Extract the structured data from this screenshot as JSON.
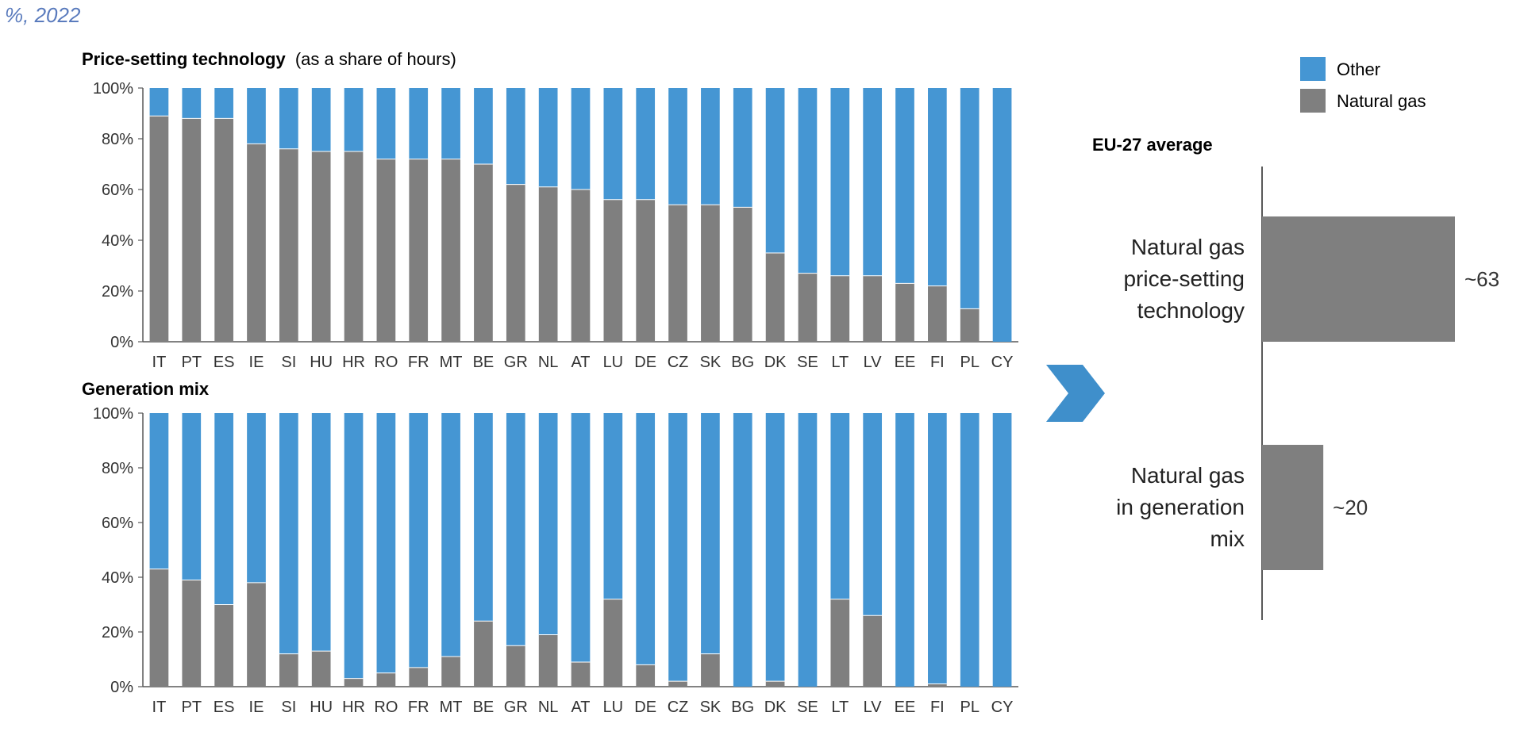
{
  "subtitle": "%, 2022",
  "colors": {
    "other": "#4596d3",
    "gas": "#7f7f7f",
    "axis": "#595959",
    "subtitle": "#5a7bbd",
    "arrow": "#3f8fcb"
  },
  "legend": {
    "other": "Other",
    "gas": "Natural gas"
  },
  "chart_data": [
    {
      "type": "bar",
      "stacked": true,
      "title": "Price-setting technology",
      "title_suffix": "(as a share of hours)",
      "categories": [
        "IT",
        "PT",
        "ES",
        "IE",
        "SI",
        "HU",
        "HR",
        "RO",
        "FR",
        "MT",
        "BE",
        "GR",
        "NL",
        "AT",
        "LU",
        "DE",
        "CZ",
        "SK",
        "BG",
        "DK",
        "SE",
        "LT",
        "LV",
        "EE",
        "FI",
        "PL",
        "CY"
      ],
      "series": [
        {
          "name": "Natural gas",
          "values": [
            89,
            88,
            88,
            78,
            76,
            75,
            75,
            72,
            72,
            72,
            70,
            62,
            61,
            60,
            56,
            56,
            54,
            54,
            53,
            35,
            27,
            26,
            26,
            23,
            22,
            13,
            0
          ]
        },
        {
          "name": "Other",
          "values": [
            11,
            12,
            12,
            22,
            24,
            25,
            25,
            28,
            28,
            28,
            30,
            38,
            39,
            40,
            44,
            44,
            46,
            46,
            47,
            65,
            73,
            74,
            74,
            77,
            78,
            87,
            100
          ]
        }
      ],
      "ylim": [
        0,
        100
      ],
      "yticks": [
        "0%",
        "20%",
        "40%",
        "60%",
        "80%",
        "100%"
      ],
      "grid": false
    },
    {
      "type": "bar",
      "stacked": true,
      "title": "Generation mix",
      "categories": [
        "IT",
        "PT",
        "ES",
        "IE",
        "SI",
        "HU",
        "HR",
        "RO",
        "FR",
        "MT",
        "BE",
        "GR",
        "NL",
        "AT",
        "LU",
        "DE",
        "CZ",
        "SK",
        "BG",
        "DK",
        "SE",
        "LT",
        "LV",
        "EE",
        "FI",
        "PL",
        "CY"
      ],
      "series": [
        {
          "name": "Natural gas",
          "values": [
            43,
            39,
            30,
            38,
            12,
            13,
            3,
            5,
            7,
            11,
            24,
            15,
            19,
            9,
            32,
            8,
            2,
            12,
            0,
            2,
            0,
            32,
            26,
            0,
            1,
            0,
            0
          ]
        },
        {
          "name": "Other",
          "values": [
            57,
            61,
            70,
            62,
            88,
            87,
            97,
            95,
            93,
            89,
            76,
            85,
            81,
            91,
            68,
            92,
            98,
            88,
            100,
            98,
            100,
            68,
            74,
            100,
            99,
            100,
            100
          ]
        }
      ],
      "ylim": [
        0,
        100
      ],
      "yticks": [
        "0%",
        "20%",
        "40%",
        "60%",
        "80%",
        "100%"
      ],
      "grid": false
    },
    {
      "type": "bar",
      "orientation": "horizontal",
      "title": "EU-27 average",
      "categories": [
        [
          "Natural gas",
          "price-setting",
          "technology"
        ],
        [
          "Natural gas",
          "in generation",
          "mix"
        ]
      ],
      "values": [
        63,
        20
      ],
      "data_labels": [
        "~63",
        "~20"
      ],
      "xlim": [
        0,
        63
      ]
    }
  ]
}
